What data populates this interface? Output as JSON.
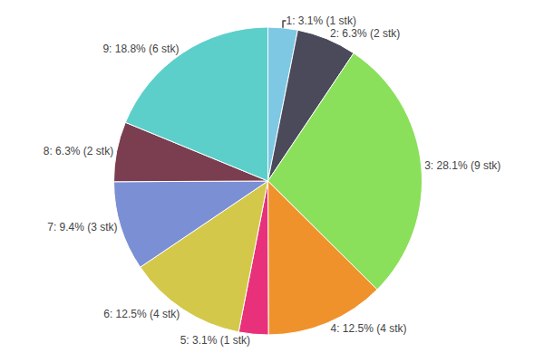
{
  "chart_data": {
    "type": "pie",
    "categories": [
      "1: 3.1% (1 stk)",
      "2: 6.3% (2 stk)",
      "3: 28.1% (9 stk)",
      "4: 12.5% (4 stk)",
      "5: 3.1% (1 stk)",
      "6: 12.5% (4 stk)",
      "7: 9.4% (3 stk)",
      "8: 6.3% (2 stk)",
      "9: 18.8% (6 stk)"
    ],
    "values": [
      3.1,
      6.3,
      28.1,
      12.5,
      3.1,
      12.5,
      9.4,
      6.3,
      18.8
    ],
    "colors": [
      "#7ec8e3",
      "#4a4a5a",
      "#8ae05a",
      "#f0922b",
      "#e8317a",
      "#d4c84a",
      "#7b8fd4",
      "#7a3e50",
      "#5dcfca"
    ]
  }
}
